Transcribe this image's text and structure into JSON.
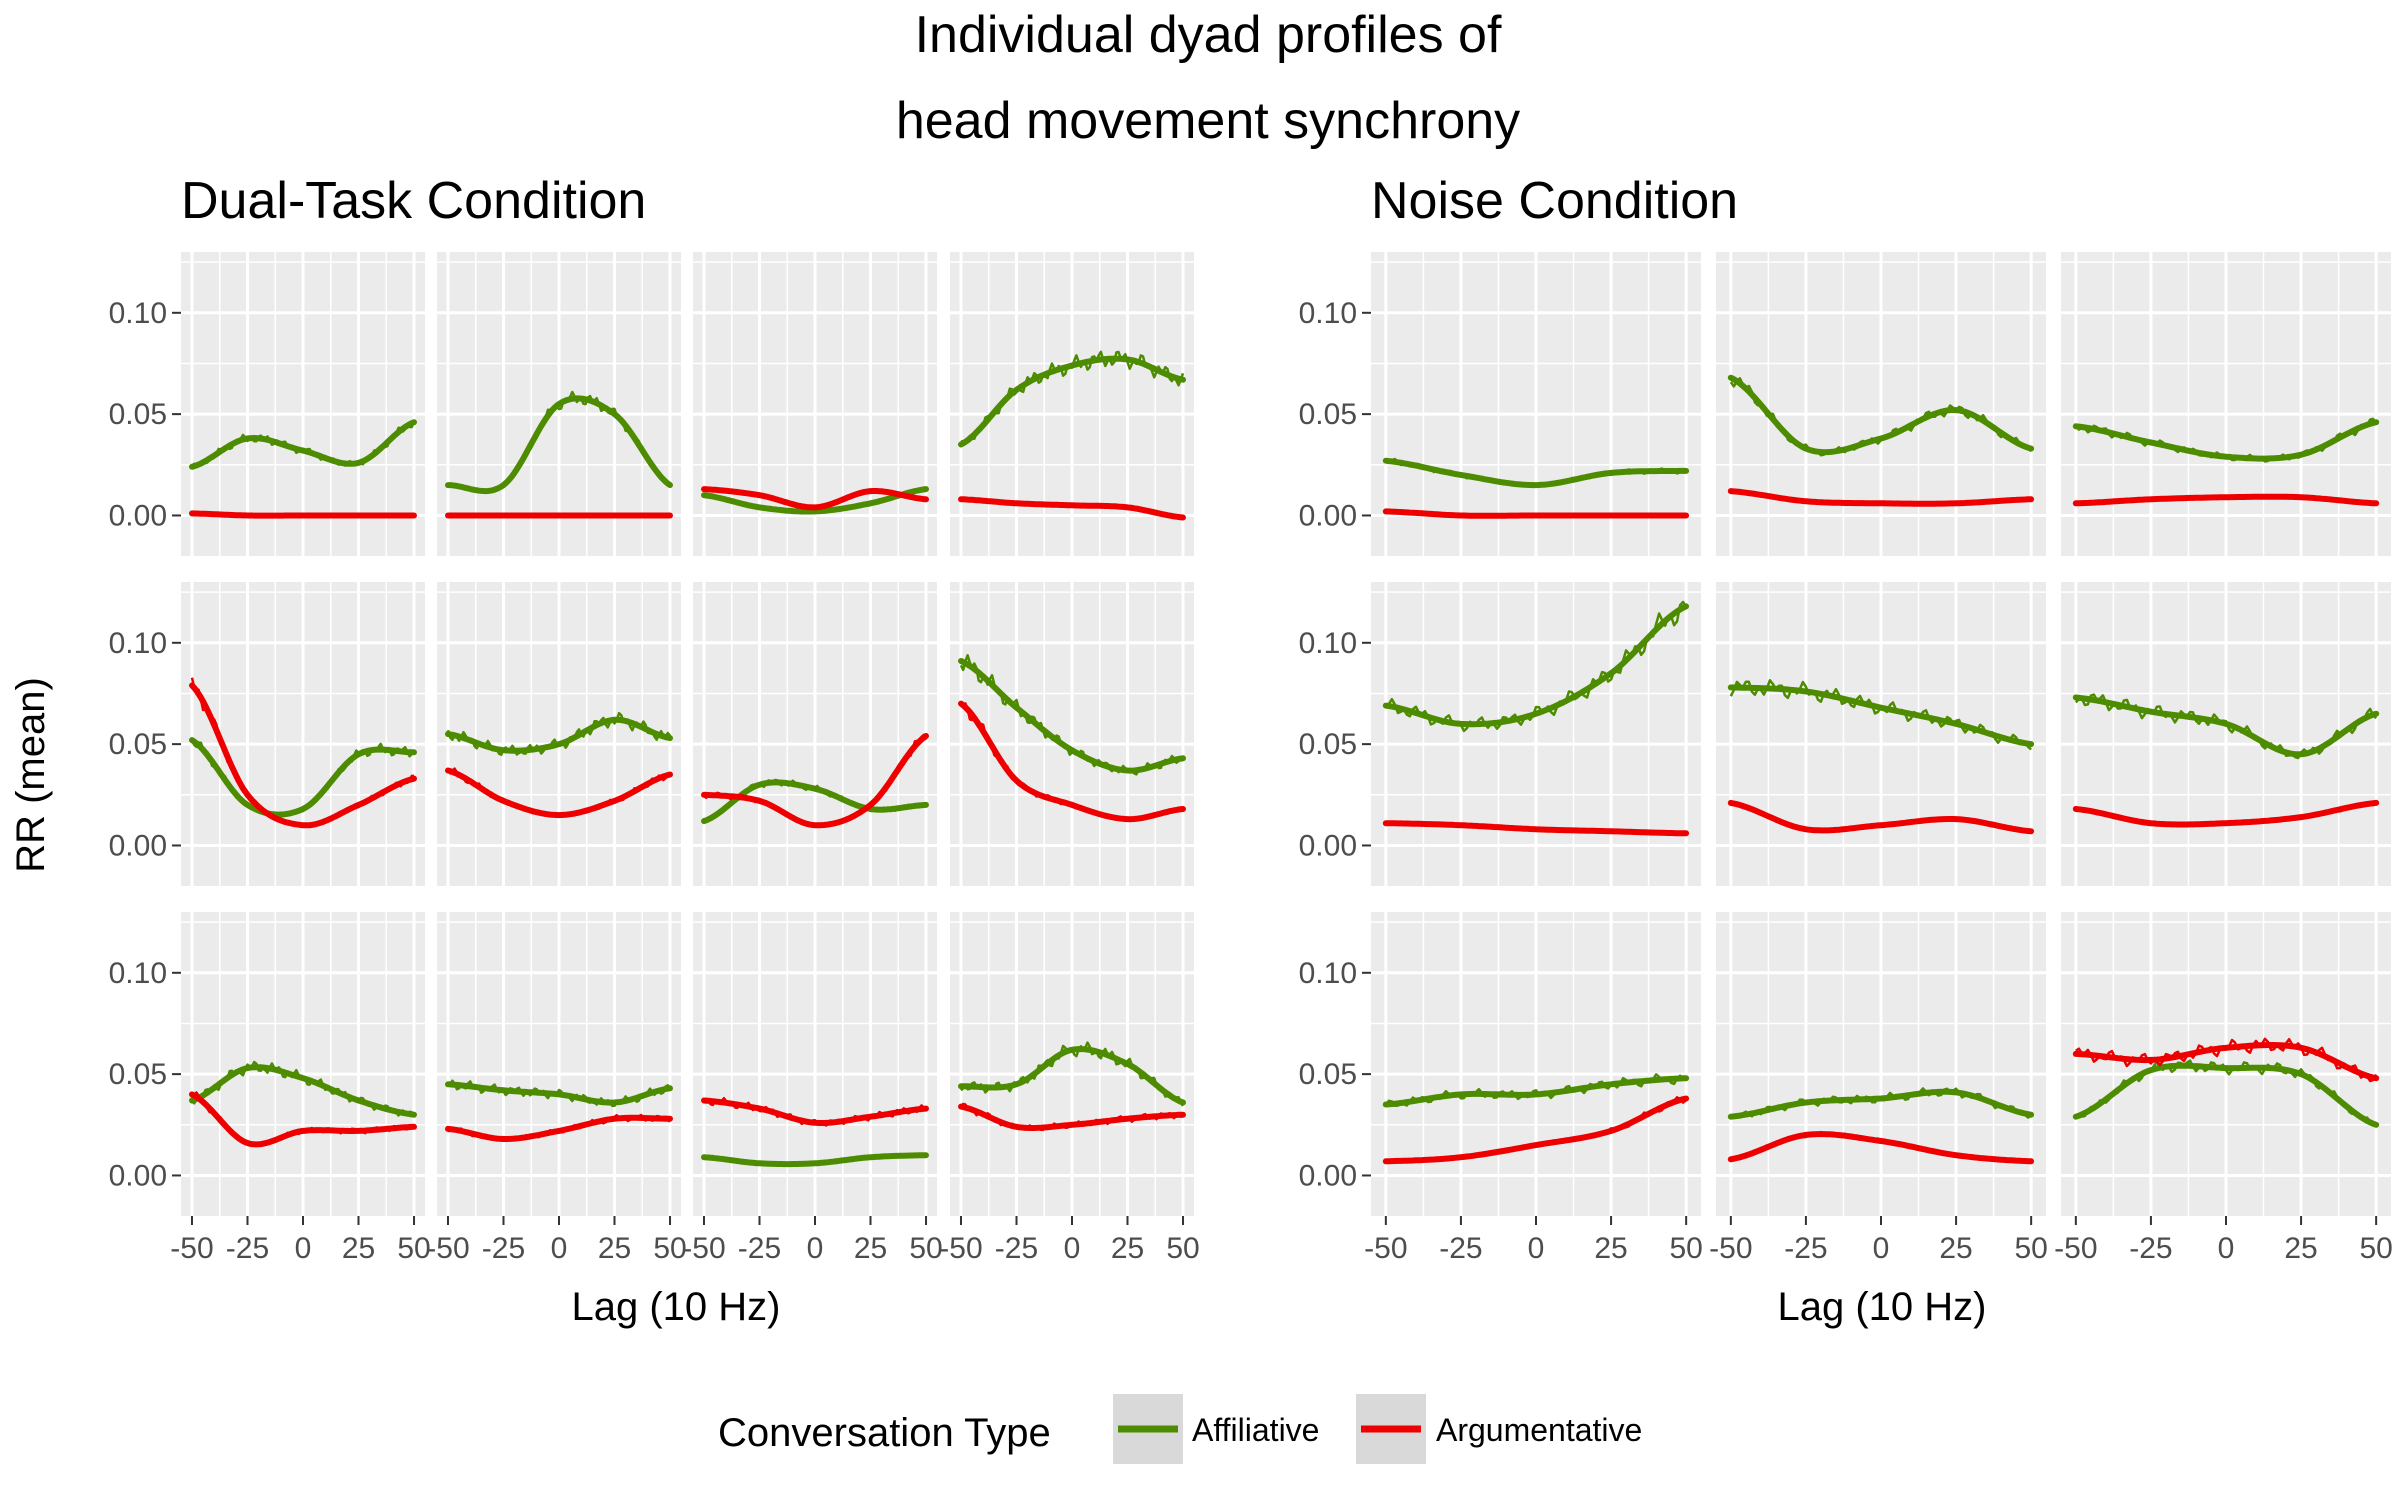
{
  "chart_data": {
    "type": "line",
    "title_lines": [
      "Individual dyad profiles of",
      "head movement synchrony"
    ],
    "ylabel": "RR (mean)",
    "xlabel": "Lag (10 Hz)",
    "xlim": [
      -50,
      50
    ],
    "ylim": [
      -0.02,
      0.13
    ],
    "xticks": [
      -50,
      -25,
      0,
      25,
      50
    ],
    "xtick_labels": [
      "-50",
      "-25",
      "0",
      "25",
      "50"
    ],
    "yticks": [
      0.0,
      0.05,
      0.1
    ],
    "ytick_labels": [
      "0.00",
      "0.05",
      "0.10"
    ],
    "grid": true,
    "legend": {
      "title": "Conversation Type",
      "position": "bottom",
      "entries": [
        {
          "label": "Affiliative",
          "color": "#4d8c00"
        },
        {
          "label": "Argumentative",
          "color": "#ee0000"
        }
      ]
    },
    "x": [
      -50,
      -25,
      0,
      25,
      50
    ],
    "groups": [
      {
        "title": "Dual-Task Condition",
        "panels": [
          {
            "series": [
              {
                "values": [
                  0.024,
                  0.038,
                  0.032,
                  0.026,
                  0.046
                ]
              },
              {
                "values": [
                  0.001,
                  0.0,
                  0.0,
                  0.0,
                  0.0
                ]
              }
            ]
          },
          {
            "series": [
              {
                "values": [
                  0.015,
                  0.015,
                  0.055,
                  0.05,
                  0.015
                ]
              },
              {
                "values": [
                  0.0,
                  0.0,
                  0.0,
                  0.0,
                  0.0
                ]
              }
            ]
          },
          {
            "series": [
              {
                "values": [
                  0.01,
                  0.004,
                  0.002,
                  0.006,
                  0.013
                ]
              },
              {
                "values": [
                  0.013,
                  0.01,
                  0.004,
                  0.012,
                  0.008
                ]
              }
            ]
          },
          {
            "series": [
              {
                "values": [
                  0.035,
                  0.062,
                  0.074,
                  0.077,
                  0.067
                ]
              },
              {
                "values": [
                  0.008,
                  0.006,
                  0.005,
                  0.004,
                  -0.001
                ]
              }
            ]
          },
          {
            "series": [
              {
                "values": [
                  0.052,
                  0.02,
                  0.018,
                  0.045,
                  0.046
                ]
              },
              {
                "values": [
                  0.079,
                  0.025,
                  0.01,
                  0.02,
                  0.033
                ]
              }
            ]
          },
          {
            "series": [
              {
                "values": [
                  0.055,
                  0.047,
                  0.05,
                  0.062,
                  0.053
                ]
              },
              {
                "values": [
                  0.037,
                  0.022,
                  0.015,
                  0.022,
                  0.035
                ]
              }
            ]
          },
          {
            "series": [
              {
                "values": [
                  0.012,
                  0.03,
                  0.028,
                  0.018,
                  0.02
                ]
              },
              {
                "values": [
                  0.025,
                  0.022,
                  0.01,
                  0.02,
                  0.054
                ]
              }
            ]
          },
          {
            "series": [
              {
                "values": [
                  0.091,
                  0.068,
                  0.047,
                  0.037,
                  0.043
                ]
              },
              {
                "values": [
                  0.07,
                  0.032,
                  0.02,
                  0.013,
                  0.018
                ]
              }
            ]
          },
          {
            "series": [
              {
                "values": [
                  0.037,
                  0.053,
                  0.048,
                  0.037,
                  0.03
                ]
              },
              {
                "values": [
                  0.04,
                  0.016,
                  0.022,
                  0.022,
                  0.024
                ]
              }
            ]
          },
          {
            "series": [
              {
                "values": [
                  0.045,
                  0.042,
                  0.04,
                  0.036,
                  0.043
                ]
              },
              {
                "values": [
                  0.023,
                  0.018,
                  0.022,
                  0.028,
                  0.028
                ]
              }
            ]
          },
          {
            "series": [
              {
                "values": [
                  0.009,
                  0.006,
                  0.006,
                  0.009,
                  0.01
                ]
              },
              {
                "values": [
                  0.037,
                  0.033,
                  0.026,
                  0.029,
                  0.033
                ]
              }
            ]
          },
          {
            "series": [
              {
                "values": [
                  0.044,
                  0.045,
                  0.062,
                  0.055,
                  0.036
                ]
              },
              {
                "values": [
                  0.034,
                  0.024,
                  0.025,
                  0.028,
                  0.03
                ]
              }
            ]
          }
        ]
      },
      {
        "title": "Noise Condition",
        "panels": [
          {
            "series": [
              {
                "values": [
                  0.027,
                  0.02,
                  0.015,
                  0.021,
                  0.022
                ]
              },
              {
                "values": [
                  0.002,
                  0.0,
                  0.0,
                  0.0,
                  0.0
                ]
              }
            ]
          },
          {
            "series": [
              {
                "values": [
                  0.068,
                  0.033,
                  0.038,
                  0.052,
                  0.033
                ]
              },
              {
                "values": [
                  0.012,
                  0.007,
                  0.006,
                  0.006,
                  0.008
                ]
              }
            ]
          },
          {
            "series": [
              {
                "values": [
                  0.044,
                  0.036,
                  0.029,
                  0.03,
                  0.046
                ]
              },
              {
                "values": [
                  0.006,
                  0.008,
                  0.009,
                  0.009,
                  0.006
                ]
              }
            ]
          },
          {
            "series": [
              {
                "values": [
                  0.069,
                  0.06,
                  0.065,
                  0.085,
                  0.118
                ]
              },
              {
                "values": [
                  0.011,
                  0.01,
                  0.008,
                  0.007,
                  0.006
                ]
              }
            ]
          },
          {
            "series": [
              {
                "values": [
                  0.078,
                  0.076,
                  0.068,
                  0.06,
                  0.05
                ]
              },
              {
                "values": [
                  0.021,
                  0.008,
                  0.01,
                  0.013,
                  0.007
                ]
              }
            ]
          },
          {
            "series": [
              {
                "values": [
                  0.073,
                  0.066,
                  0.06,
                  0.045,
                  0.065
                ]
              },
              {
                "values": [
                  0.018,
                  0.011,
                  0.011,
                  0.014,
                  0.021
                ]
              }
            ]
          },
          {
            "series": [
              {
                "values": [
                  0.035,
                  0.04,
                  0.04,
                  0.045,
                  0.048
                ]
              },
              {
                "values": [
                  0.007,
                  0.009,
                  0.015,
                  0.022,
                  0.038
                ]
              }
            ]
          },
          {
            "series": [
              {
                "values": [
                  0.029,
                  0.036,
                  0.038,
                  0.041,
                  0.03
                ]
              },
              {
                "values": [
                  0.008,
                  0.02,
                  0.017,
                  0.01,
                  0.007
                ]
              }
            ]
          },
          {
            "series": [
              {
                "values": [
                  0.029,
                  0.052,
                  0.053,
                  0.05,
                  0.025
                ]
              },
              {
                "values": [
                  0.06,
                  0.057,
                  0.063,
                  0.063,
                  0.048
                ]
              }
            ]
          }
        ]
      }
    ]
  }
}
